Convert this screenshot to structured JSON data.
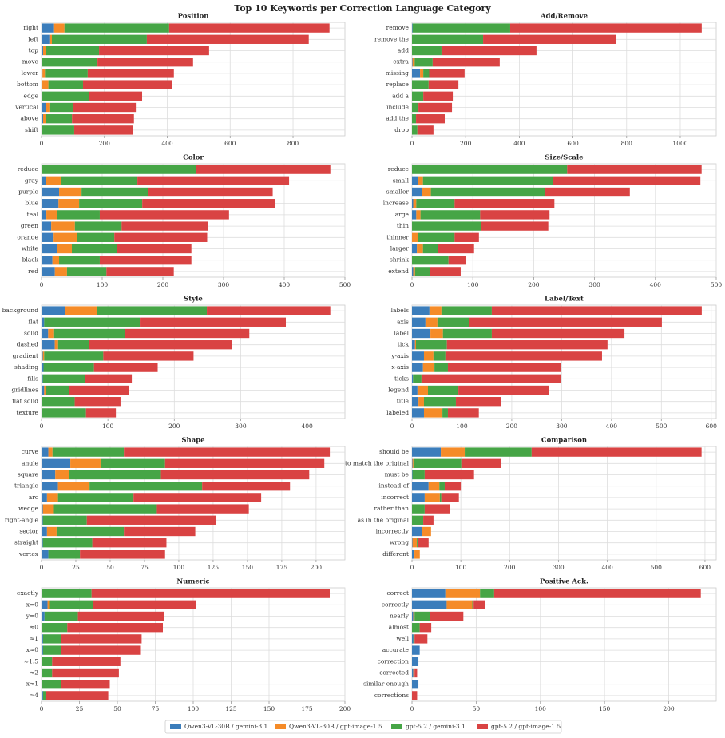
{
  "title": "Top 10 Keywords per Correction Language Category",
  "chart_data": [
    {
      "type": "bar",
      "horizontal": true,
      "title": "Position",
      "xlim": [
        0,
        965
      ],
      "xticks": [
        0,
        200,
        400,
        600,
        800
      ],
      "grid": true,
      "categories": [
        "right",
        "left",
        "top",
        "move",
        "lower",
        "bottom",
        "edge",
        "vertical",
        "above",
        "shift"
      ],
      "series": [
        {
          "name": "Qwen3-VL-30B / gemini-3.1",
          "color": "#3b7dbb",
          "values": [
            40,
            25,
            5,
            2,
            3,
            2,
            2,
            15,
            5,
            2
          ]
        },
        {
          "name": "Qwen3-VL-30B / gpt-image-1.5",
          "color": "#f58b28",
          "values": [
            33,
            8,
            8,
            0,
            8,
            20,
            0,
            10,
            10,
            0
          ]
        },
        {
          "name": "gpt-5.2 / gemini-3.1",
          "color": "#46a546",
          "values": [
            333,
            302,
            170,
            176,
            136,
            110,
            148,
            74,
            82,
            102
          ]
        },
        {
          "name": "gpt-5.2 / gpt-image-1.5",
          "color": "#d94343",
          "values": [
            510,
            515,
            350,
            304,
            274,
            284,
            170,
            201,
            197,
            188
          ]
        }
      ]
    },
    {
      "type": "bar",
      "horizontal": true,
      "title": "Add/Remove",
      "xlim": [
        0,
        1134
      ],
      "xticks": [
        0,
        200,
        400,
        600,
        800,
        1000
      ],
      "grid": true,
      "categories": [
        "remove",
        "remove the",
        "add",
        "extra",
        "missing",
        "replace",
        "add a",
        "include",
        "add the",
        "drop"
      ],
      "series": [
        {
          "name": "Qwen3-VL-30B / gemini-3.1",
          "color": "#3b7dbb",
          "values": [
            2,
            0,
            0,
            2,
            30,
            0,
            0,
            0,
            0,
            0
          ]
        },
        {
          "name": "Qwen3-VL-30B / gpt-image-1.5",
          "color": "#f58b28",
          "values": [
            0,
            0,
            0,
            8,
            12,
            0,
            0,
            0,
            0,
            0
          ]
        },
        {
          "name": "gpt-5.2 / gemini-3.1",
          "color": "#46a546",
          "values": [
            364,
            265,
            110,
            67,
            22,
            62,
            42,
            24,
            15,
            20
          ]
        },
        {
          "name": "gpt-5.2 / gpt-image-1.5",
          "color": "#d94343",
          "values": [
            714,
            494,
            354,
            250,
            132,
            111,
            110,
            125,
            107,
            60
          ]
        }
      ]
    },
    {
      "type": "bar",
      "horizontal": true,
      "title": "Color",
      "xlim": [
        0,
        500
      ],
      "xticks": [
        0,
        100,
        200,
        300,
        400,
        500
      ],
      "grid": true,
      "categories": [
        "reduce",
        "gray",
        "purple",
        "blue",
        "teal",
        "green",
        "orange",
        "white",
        "black",
        "red"
      ],
      "series": [
        {
          "name": "Qwen3-VL-30B / gemini-3.1",
          "color": "#3b7dbb",
          "values": [
            0,
            7,
            29,
            28,
            8,
            16,
            20,
            25,
            18,
            22
          ]
        },
        {
          "name": "Qwen3-VL-30B / gpt-image-1.5",
          "color": "#f58b28",
          "values": [
            0,
            25,
            37,
            34,
            17,
            39,
            38,
            25,
            11,
            20
          ]
        },
        {
          "name": "gpt-5.2 / gemini-3.1",
          "color": "#46a546",
          "values": [
            255,
            126,
            109,
            104,
            71,
            77,
            62,
            74,
            67,
            65
          ]
        },
        {
          "name": "gpt-5.2 / gpt-image-1.5",
          "color": "#d94343",
          "values": [
            221,
            250,
            206,
            219,
            213,
            142,
            153,
            123,
            151,
            111
          ]
        }
      ]
    },
    {
      "type": "bar",
      "horizontal": true,
      "title": "Size/Scale",
      "xlim": [
        0,
        500
      ],
      "xticks": [
        0,
        100,
        200,
        300,
        400,
        500
      ],
      "grid": true,
      "categories": [
        "reduce",
        "small",
        "smaller",
        "increase",
        "large",
        "thin",
        "thinner",
        "larger",
        "shrink",
        "extend"
      ],
      "series": [
        {
          "name": "Qwen3-VL-30B / gemini-3.1",
          "color": "#3b7dbb",
          "values": [
            0,
            10,
            16,
            2,
            7,
            0,
            0,
            8,
            0,
            2
          ]
        },
        {
          "name": "Qwen3-VL-30B / gpt-image-1.5",
          "color": "#f58b28",
          "values": [
            0,
            8,
            15,
            5,
            7,
            0,
            10,
            10,
            0,
            3
          ]
        },
        {
          "name": "gpt-5.2 / gemini-3.1",
          "color": "#46a546",
          "values": [
            255,
            214,
            187,
            63,
            98,
            114,
            60,
            25,
            60,
            24
          ]
        },
        {
          "name": "gpt-5.2 / gpt-image-1.5",
          "color": "#d94343",
          "values": [
            221,
            242,
            140,
            164,
            114,
            110,
            40,
            59,
            28,
            51
          ]
        }
      ]
    },
    {
      "type": "bar",
      "horizontal": true,
      "title": "Style",
      "xlim": [
        0,
        457
      ],
      "xticks": [
        0,
        100,
        200,
        300,
        400
      ],
      "grid": true,
      "categories": [
        "background",
        "flat",
        "solid",
        "dashed",
        "gradient",
        "shading",
        "fills",
        "gridlines",
        "flat solid",
        "texture"
      ],
      "series": [
        {
          "name": "Qwen3-VL-30B / gemini-3.1",
          "color": "#3b7dbb",
          "values": [
            36,
            4,
            10,
            20,
            2,
            3,
            2,
            4,
            1,
            1
          ]
        },
        {
          "name": "Qwen3-VL-30B / gpt-image-1.5",
          "color": "#f58b28",
          "values": [
            48,
            0,
            9,
            5,
            2,
            0,
            0,
            3,
            0,
            0
          ]
        },
        {
          "name": "gpt-5.2 / gemini-3.1",
          "color": "#46a546",
          "values": [
            165,
            144,
            107,
            46,
            89,
            76,
            64,
            35,
            49,
            66
          ]
        },
        {
          "name": "gpt-5.2 / gpt-image-1.5",
          "color": "#d94343",
          "values": [
            186,
            220,
            187,
            216,
            136,
            96,
            70,
            90,
            69,
            45
          ]
        }
      ]
    },
    {
      "type": "bar",
      "horizontal": true,
      "title": "Label/Text",
      "xlim": [
        0,
        610
      ],
      "xticks": [
        0,
        100,
        200,
        300,
        400,
        500,
        600
      ],
      "grid": true,
      "categories": [
        "labels",
        "axis",
        "label",
        "tick",
        "y-axis",
        "x-axis",
        "ticks",
        "legend",
        "title",
        "labeled"
      ],
      "series": [
        {
          "name": "Qwen3-VL-30B / gemini-3.1",
          "color": "#3b7dbb",
          "values": [
            35,
            27,
            37,
            6,
            24,
            22,
            2,
            11,
            13,
            24
          ]
        },
        {
          "name": "Qwen3-VL-30B / gpt-image-1.5",
          "color": "#f58b28",
          "values": [
            24,
            24,
            25,
            2,
            19,
            23,
            0,
            21,
            11,
            37
          ]
        },
        {
          "name": "gpt-5.2 / gemini-3.1",
          "color": "#46a546",
          "values": [
            101,
            64,
            98,
            62,
            24,
            27,
            17,
            61,
            64,
            11
          ]
        },
        {
          "name": "gpt-5.2 / gpt-image-1.5",
          "color": "#d94343",
          "values": [
            421,
            386,
            266,
            322,
            314,
            226,
            279,
            182,
            90,
            62
          ]
        }
      ]
    },
    {
      "type": "bar",
      "horizontal": true,
      "title": "Shape",
      "xlim": [
        0,
        221
      ],
      "xticks": [
        0,
        25,
        50,
        75,
        100,
        125,
        150,
        175,
        200
      ],
      "grid": true,
      "categories": [
        "curve",
        "angle",
        "square",
        "triangle",
        "arc",
        "wedge",
        "right-angle",
        "sector",
        "straight",
        "vertex"
      ],
      "series": [
        {
          "name": "Qwen3-VL-30B / gemini-3.1",
          "color": "#3b7dbb",
          "values": [
            5,
            21,
            10,
            12,
            4,
            1,
            1,
            4,
            1,
            5
          ]
        },
        {
          "name": "Qwen3-VL-30B / gpt-image-1.5",
          "color": "#f58b28",
          "values": [
            3,
            22,
            10,
            23,
            8,
            8,
            0,
            7,
            0,
            0
          ]
        },
        {
          "name": "gpt-5.2 / gemini-3.1",
          "color": "#46a546",
          "values": [
            52,
            47,
            67,
            82,
            55,
            75,
            32,
            49,
            36,
            23
          ]
        },
        {
          "name": "gpt-5.2 / gpt-image-1.5",
          "color": "#d94343",
          "values": [
            150,
            116,
            108,
            64,
            93,
            67,
            94,
            52,
            54,
            62
          ]
        }
      ]
    },
    {
      "type": "bar",
      "horizontal": true,
      "title": "Comparison",
      "xlim": [
        0,
        623
      ],
      "xticks": [
        0,
        100,
        200,
        300,
        400,
        500,
        600
      ],
      "grid": true,
      "categories": [
        "should be",
        "to match the original",
        "must be",
        "instead of",
        "incorrect",
        "rather than",
        "as in the original",
        "incorrectly",
        "wrong",
        "different"
      ],
      "series": [
        {
          "name": "Qwen3-VL-30B / gemini-3.1",
          "color": "#3b7dbb",
          "values": [
            59,
            1,
            1,
            34,
            26,
            0,
            0,
            20,
            1,
            5
          ]
        },
        {
          "name": "Qwen3-VL-30B / gpt-image-1.5",
          "color": "#f58b28",
          "values": [
            49,
            2,
            0,
            22,
            31,
            0,
            0,
            19,
            9,
            11
          ]
        },
        {
          "name": "gpt-5.2 / gemini-3.1",
          "color": "#46a546",
          "values": [
            137,
            98,
            25,
            11,
            3,
            26,
            23,
            0,
            2,
            0
          ]
        },
        {
          "name": "gpt-5.2 / gpt-image-1.5",
          "color": "#d94343",
          "values": [
            348,
            81,
            101,
            33,
            36,
            51,
            21,
            0,
            22,
            0
          ]
        }
      ]
    },
    {
      "type": "bar",
      "horizontal": true,
      "title": "Numeric",
      "xlim": [
        0,
        200
      ],
      "xticks": [
        0,
        25,
        50,
        75,
        100,
        125,
        150,
        175,
        200
      ],
      "grid": true,
      "categories": [
        "exactly",
        "x=0",
        "y=0",
        "≈0",
        "≈1",
        "x≈0",
        "≈1.5",
        "≈2",
        "x≈1",
        "≈4"
      ],
      "series": [
        {
          "name": "Qwen3-VL-30B / gemini-3.1",
          "color": "#3b7dbb",
          "values": [
            0,
            4,
            2,
            0,
            1,
            1,
            0,
            0,
            0,
            1
          ]
        },
        {
          "name": "Qwen3-VL-30B / gpt-image-1.5",
          "color": "#f58b28",
          "values": [
            0,
            1,
            0,
            0,
            0,
            0,
            0,
            0,
            0,
            0
          ]
        },
        {
          "name": "gpt-5.2 / gemini-3.1",
          "color": "#46a546",
          "values": [
            33,
            29,
            22,
            17,
            12,
            12,
            7,
            7,
            13,
            2
          ]
        },
        {
          "name": "gpt-5.2 / gpt-image-1.5",
          "color": "#d94343",
          "values": [
            157,
            68,
            57,
            63,
            53,
            52,
            45,
            44,
            32,
            41
          ]
        }
      ]
    },
    {
      "type": "bar",
      "horizontal": true,
      "title": "Positive Ack.",
      "xlim": [
        0,
        237
      ],
      "xticks": [
        0,
        50,
        100,
        150,
        200
      ],
      "grid": true,
      "categories": [
        "correct",
        "correctly",
        "nearly",
        "almost",
        "well",
        "accurate",
        "correction",
        "corrected",
        "similar enough",
        "corrections"
      ],
      "series": [
        {
          "name": "Qwen3-VL-30B / gemini-3.1",
          "color": "#3b7dbb",
          "values": [
            26,
            27,
            1,
            0,
            1,
            6,
            5,
            1,
            5,
            0
          ]
        },
        {
          "name": "Qwen3-VL-30B / gpt-image-1.5",
          "color": "#f58b28",
          "values": [
            27,
            20,
            1,
            0,
            0,
            0,
            0,
            1,
            0,
            0
          ]
        },
        {
          "name": "gpt-5.2 / gemini-3.1",
          "color": "#46a546",
          "values": [
            11,
            1,
            12,
            6,
            1,
            0,
            0,
            0,
            0,
            0
          ]
        },
        {
          "name": "gpt-5.2 / gpt-image-1.5",
          "color": "#d94343",
          "values": [
            161,
            9,
            26,
            9,
            10,
            0,
            0,
            2,
            0,
            4
          ]
        }
      ]
    }
  ]
}
